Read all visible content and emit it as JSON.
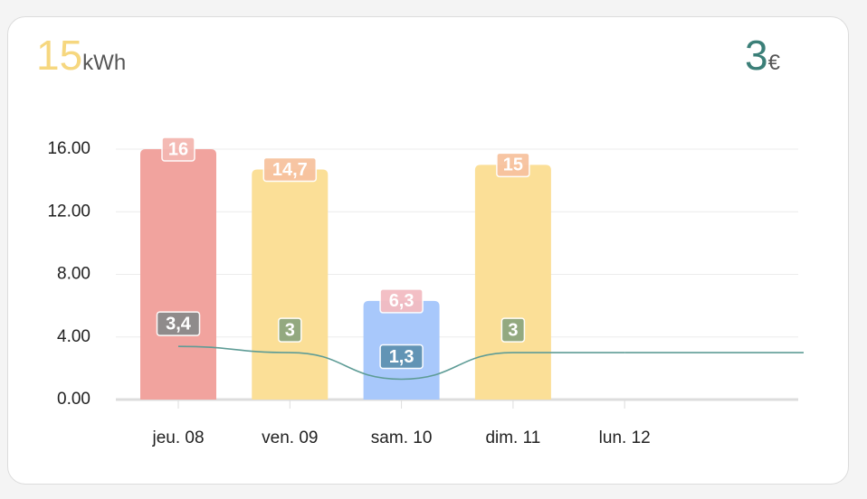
{
  "header": {
    "energy": "15",
    "energy_unit": "kWh",
    "cost": "3",
    "cost_unit": "€"
  },
  "chart_data": {
    "type": "bar",
    "categories": [
      "jeu. 08",
      "ven. 09",
      "sam. 10",
      "dim. 11",
      "lun. 12"
    ],
    "series": [
      {
        "type": "bar",
        "colors": [
          "#f1a39e",
          "#fbdf97",
          "#a8c8fb",
          "#fbdf97",
          null
        ],
        "label_colors": [
          "#f4b7b1",
          "#f7c29f",
          "#f3bcc2",
          "#f7c29f",
          null
        ],
        "values": [
          16,
          14.7,
          6.3,
          15,
          null
        ],
        "value_labels": [
          "16",
          "14,7",
          "6,3",
          "15",
          null
        ]
      },
      {
        "type": "line",
        "color": "#5e9c96",
        "label_colors": [
          "#8a8a8a",
          "#8ea77f",
          "#5f92b2",
          "#8ea77f",
          null
        ],
        "values": [
          3.4,
          3,
          1.3,
          3,
          3
        ],
        "value_labels": [
          "3,4",
          "3",
          "1,3",
          "3",
          null
        ]
      }
    ],
    "ylim": [
      0,
      16
    ],
    "yticks": [
      {
        "value": 0,
        "label": "0.00"
      },
      {
        "value": 4,
        "label": "4.00"
      },
      {
        "value": 8,
        "label": "8.00"
      },
      {
        "value": 12,
        "label": "12.00"
      },
      {
        "value": 16,
        "label": "16.00"
      }
    ],
    "grid": true
  }
}
